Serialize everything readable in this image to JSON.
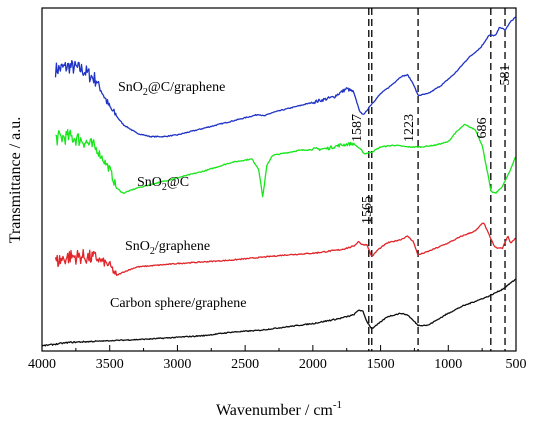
{
  "chart_data": {
    "type": "line",
    "xlabel": "Wavenumber / cm",
    "xlabel_sup": "-1",
    "ylabel": "Transmittance / a.u.",
    "xlim": [
      4000,
      500
    ],
    "x_reversed": true,
    "x_ticks": [
      4000,
      3500,
      3000,
      2500,
      2000,
      1500,
      1000,
      500
    ],
    "x_tick_labels": [
      "4000",
      "3500",
      "3000",
      "2500",
      "2000",
      "1500",
      "1000",
      "500"
    ],
    "ylim": [
      0,
      100
    ],
    "y_ticks_labeled": false,
    "grid": false,
    "legend": "none",
    "series": [
      {
        "name": "SnO2@C/graphene",
        "color": "#1f33c4",
        "points": [
          [
            3900,
            82
          ],
          [
            3800,
            83
          ],
          [
            3700,
            82
          ],
          [
            3600,
            79
          ],
          [
            3500,
            71
          ],
          [
            3400,
            66
          ],
          [
            3300,
            63.5
          ],
          [
            3200,
            62.5
          ],
          [
            3100,
            62.5
          ],
          [
            3000,
            63
          ],
          [
            2800,
            65
          ],
          [
            2600,
            67
          ],
          [
            2400,
            69
          ],
          [
            2360,
            68.5
          ],
          [
            2300,
            69.5
          ],
          [
            2200,
            70.5
          ],
          [
            2000,
            72.5
          ],
          [
            1850,
            74
          ],
          [
            1750,
            76.5
          ],
          [
            1700,
            75.5
          ],
          [
            1650,
            69.5
          ],
          [
            1620,
            69
          ],
          [
            1587,
            71
          ],
          [
            1500,
            75
          ],
          [
            1420,
            77.5
          ],
          [
            1350,
            80
          ],
          [
            1300,
            80.5
          ],
          [
            1260,
            78
          ],
          [
            1223,
            74.5
          ],
          [
            1150,
            75
          ],
          [
            1050,
            77.5
          ],
          [
            950,
            81
          ],
          [
            850,
            85.5
          ],
          [
            760,
            88.5
          ],
          [
            700,
            92
          ],
          [
            650,
            92
          ],
          [
            620,
            94.5
          ],
          [
            581,
            93.5
          ],
          [
            540,
            96
          ],
          [
            500,
            97.5
          ]
        ]
      },
      {
        "name": "SnO2@C",
        "color": "#17e61a",
        "points": [
          [
            3900,
            62
          ],
          [
            3800,
            62.5
          ],
          [
            3700,
            61.5
          ],
          [
            3600,
            59
          ],
          [
            3500,
            53
          ],
          [
            3450,
            47.5
          ],
          [
            3400,
            46
          ],
          [
            3300,
            47.5
          ],
          [
            3200,
            48.5
          ],
          [
            3000,
            50.5
          ],
          [
            2800,
            52.5
          ],
          [
            2600,
            55
          ],
          [
            2450,
            56
          ],
          [
            2400,
            53
          ],
          [
            2370,
            45
          ],
          [
            2340,
            54
          ],
          [
            2300,
            57
          ],
          [
            2100,
            58.5
          ],
          [
            1900,
            59
          ],
          [
            1800,
            60
          ],
          [
            1700,
            60.5
          ],
          [
            1640,
            58.5
          ],
          [
            1620,
            57.5
          ],
          [
            1565,
            58
          ],
          [
            1500,
            59.5
          ],
          [
            1400,
            60
          ],
          [
            1300,
            59.5
          ],
          [
            1200,
            59.5
          ],
          [
            1100,
            60
          ],
          [
            1000,
            61
          ],
          [
            950,
            63.5
          ],
          [
            880,
            66
          ],
          [
            800,
            64.5
          ],
          [
            750,
            60
          ],
          [
            700,
            50
          ],
          [
            686,
            46.5
          ],
          [
            650,
            46
          ],
          [
            600,
            48
          ],
          [
            550,
            52
          ],
          [
            500,
            57
          ]
        ]
      },
      {
        "name": "SnO2/graphene",
        "color": "#e0262b",
        "points": [
          [
            3900,
            26
          ],
          [
            3800,
            27.5
          ],
          [
            3700,
            27.5
          ],
          [
            3600,
            27
          ],
          [
            3500,
            25
          ],
          [
            3450,
            22
          ],
          [
            3400,
            23
          ],
          [
            3300,
            24.5
          ],
          [
            3000,
            25.5
          ],
          [
            2600,
            26.5
          ],
          [
            2200,
            28
          ],
          [
            2000,
            28.5
          ],
          [
            1800,
            29.5
          ],
          [
            1700,
            30.5
          ],
          [
            1660,
            32
          ],
          [
            1640,
            31
          ],
          [
            1600,
            31
          ],
          [
            1565,
            27.5
          ],
          [
            1520,
            29.5
          ],
          [
            1450,
            31.5
          ],
          [
            1350,
            32.5
          ],
          [
            1300,
            33.5
          ],
          [
            1260,
            32
          ],
          [
            1223,
            28
          ],
          [
            1150,
            29
          ],
          [
            1000,
            31.5
          ],
          [
            900,
            33.5
          ],
          [
            800,
            35
          ],
          [
            740,
            37.5
          ],
          [
            700,
            34
          ],
          [
            660,
            30.5
          ],
          [
            640,
            30
          ],
          [
            600,
            30
          ],
          [
            560,
            33.5
          ],
          [
            540,
            31.5
          ],
          [
            500,
            33
          ]
        ]
      },
      {
        "name": "Carbon sphere/graphene",
        "color": "#101010",
        "points": [
          [
            4000,
            1.5
          ],
          [
            3800,
            2.5
          ],
          [
            3500,
            3
          ],
          [
            3200,
            3.5
          ],
          [
            3000,
            4
          ],
          [
            2800,
            4.5
          ],
          [
            2600,
            5.5
          ],
          [
            2400,
            6
          ],
          [
            2200,
            7
          ],
          [
            2000,
            8
          ],
          [
            1800,
            9.5
          ],
          [
            1700,
            10.5
          ],
          [
            1660,
            12
          ],
          [
            1630,
            11.5
          ],
          [
            1600,
            8.5
          ],
          [
            1565,
            6.5
          ],
          [
            1530,
            7.5
          ],
          [
            1450,
            10
          ],
          [
            1400,
            10.5
          ],
          [
            1350,
            11
          ],
          [
            1300,
            10.5
          ],
          [
            1223,
            7.5
          ],
          [
            1150,
            7.5
          ],
          [
            1000,
            11
          ],
          [
            900,
            13
          ],
          [
            800,
            14.5
          ],
          [
            700,
            16
          ],
          [
            600,
            18
          ],
          [
            550,
            19.5
          ],
          [
            500,
            21
          ]
        ]
      }
    ],
    "annotations": [
      {
        "value": 1587,
        "text": "1587"
      },
      {
        "value": 1565,
        "text": "1565"
      },
      {
        "value": 1223,
        "text": "1223"
      },
      {
        "value": 686,
        "text": "686"
      },
      {
        "value": 581,
        "text": "581"
      }
    ]
  },
  "labels": {
    "s1_main": "SnO",
    "s1_sub": "2",
    "s1_rest": "@C/graphene",
    "s2_main": "SnO",
    "s2_sub": "2",
    "s2_rest": "@C",
    "s3_main": "SnO",
    "s3_sub": "2",
    "s3_rest": "/graphene",
    "s4_text": "Carbon sphere/graphene"
  }
}
